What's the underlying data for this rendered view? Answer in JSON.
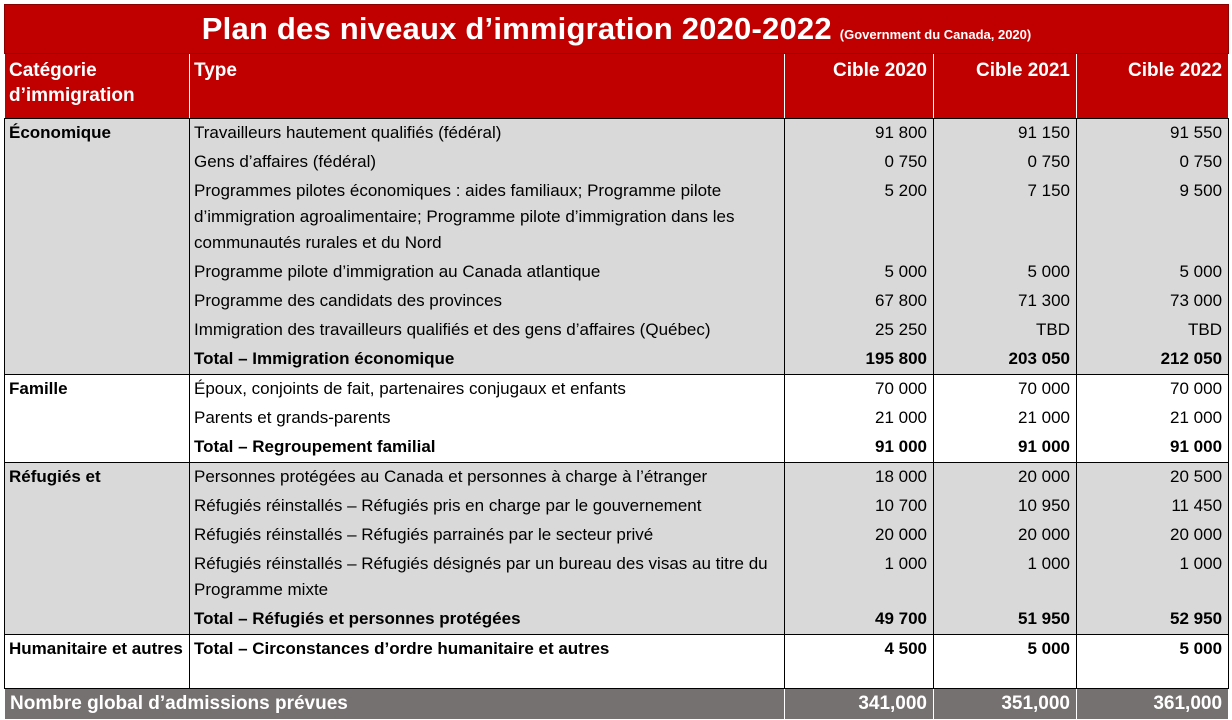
{
  "title": "Plan des niveaux d’immigration 2020-2022",
  "source": "(Government du Canada, 2020)",
  "headers": {
    "category": "Catégorie d’immigration",
    "type": "Type",
    "c2020": "Cible 2020",
    "c2021": "Cible 2021",
    "c2022": "Cible 2022"
  },
  "groups": [
    {
      "category": "Économique",
      "rows": [
        {
          "type": "Travailleurs hautement qualifiés (fédéral)",
          "v2020": "91 800",
          "v2021": "91 150",
          "v2022": "91 550"
        },
        {
          "type": "Gens d’affaires (fédéral)",
          "v2020": "0 750",
          "v2021": "0 750",
          "v2022": "0 750"
        },
        {
          "type": "Programmes pilotes économiques : aides familiaux; Programme pilote d’immigration agroalimentaire; Programme pilote d’immigration dans les communautés rurales et du Nord",
          "v2020": "5 200",
          "v2021": "7 150",
          "v2022": "9 500"
        },
        {
          "type": "Programme pilote d’immigration au Canada atlantique",
          "v2020": "5 000",
          "v2021": "5 000",
          "v2022": "5 000"
        },
        {
          "type": "Programme des candidats des provinces",
          "v2020": "67 800",
          "v2021": "71 300",
          "v2022": "73 000"
        },
        {
          "type": "Immigration des travailleurs qualifiés et des gens d’affaires (Québec)",
          "v2020": "25 250",
          "v2021": "TBD",
          "v2022": "TBD"
        }
      ],
      "total": {
        "type": "Total – Immigration économique",
        "v2020": "195 800",
        "v2021": "203 050",
        "v2022": "212 050"
      }
    },
    {
      "category": "Famille",
      "rows": [
        {
          "type": "Époux, conjoints de fait, partenaires conjugaux et enfants",
          "v2020": "70 000",
          "v2021": "70 000",
          "v2022": "70 000"
        },
        {
          "type": "Parents et grands-parents",
          "v2020": "21 000",
          "v2021": "21 000",
          "v2022": "21 000"
        }
      ],
      "total": {
        "type": "Total – Regroupement familial",
        "v2020": "91 000",
        "v2021": "91 000",
        "v2022": "91 000"
      }
    },
    {
      "category": "Réfugiés et",
      "rows": [
        {
          "type": "Personnes protégées au Canada et personnes à charge à l’étranger",
          "v2020": "18 000",
          "v2021": "20 000",
          "v2022": "20 500"
        },
        {
          "type": "Réfugiés réinstallés – Réfugiés pris en charge par le gouvernement",
          "v2020": "10 700",
          "v2021": "10 950",
          "v2022": "11 450"
        },
        {
          "type": "Réfugiés réinstallés – Réfugiés parrainés par le secteur privé",
          "v2020": "20 000",
          "v2021": "20 000",
          "v2022": "20 000"
        },
        {
          "type": "Réfugiés réinstallés – Réfugiés désignés par un bureau des visas au titre du Programme mixte",
          "v2020": "1 000",
          "v2021": "1 000",
          "v2022": "1 000"
        }
      ],
      "total": {
        "type": "Total – Réfugiés et personnes protégées",
        "v2020": "49 700",
        "v2021": "51 950",
        "v2022": "52 950"
      }
    },
    {
      "category": "Humanitaire et autres",
      "rows": [],
      "total": {
        "type": "Total – Circonstances d’ordre humanitaire et autres",
        "v2020": "4 500",
        "v2021": "5 000",
        "v2022": "5 000"
      }
    }
  ],
  "footer": {
    "label": "Nombre global d’admissions prévues",
    "v2020": "341,000",
    "v2021": "351,000",
    "v2022": "361,000"
  },
  "colors": {
    "header_red": "#c00000",
    "row_grey": "#d9d9d9",
    "footer_grey": "#767171"
  }
}
